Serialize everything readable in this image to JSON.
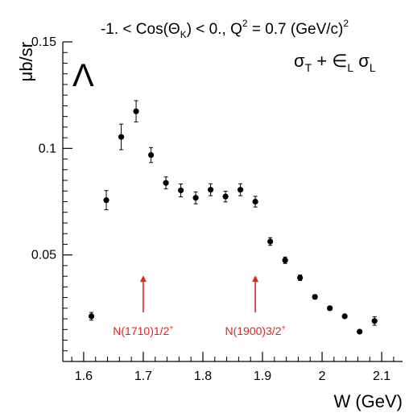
{
  "chart_data": {
    "type": "scatter",
    "title": "-1. < Cos(Θ_K) < 0.,  Q^2 = 0.7 (GeV/c)^2",
    "title_parts": {
      "cut": "-1. < Cos(Θ",
      "cut_sub": "K",
      "cut_tail": ") < 0.,  Q",
      "q_sup": "2",
      "q_mid": " = 0.7 (GeV/c)",
      "unit_sup": "2"
    },
    "xlabel": "W (GeV)",
    "ylabel": "μb/sr",
    "xlim": [
      1.565,
      2.135
    ],
    "ylim": [
      0.0,
      0.15
    ],
    "xticks": [
      {
        "v": 1.6,
        "label": "1.6"
      },
      {
        "v": 1.7,
        "label": "1.7"
      },
      {
        "v": 1.8,
        "label": "1.8"
      },
      {
        "v": 1.9,
        "label": "1.9"
      },
      {
        "v": 2.0,
        "label": "2"
      },
      {
        "v": 2.1,
        "label": "2.1"
      }
    ],
    "yticks": [
      {
        "v": 0.05,
        "label": "0.05"
      },
      {
        "v": 0.1,
        "label": "0.1"
      },
      {
        "v": 0.15,
        "label": "0.15"
      }
    ],
    "series": [
      {
        "points": [
          {
            "x": 1.613,
            "y": 0.0212,
            "err": 0.0018
          },
          {
            "x": 1.638,
            "y": 0.0757,
            "err": 0.0045
          },
          {
            "x": 1.663,
            "y": 0.1054,
            "err": 0.006
          },
          {
            "x": 1.688,
            "y": 0.1174,
            "err": 0.005
          },
          {
            "x": 1.713,
            "y": 0.0969,
            "err": 0.0035
          },
          {
            "x": 1.738,
            "y": 0.0838,
            "err": 0.0028
          },
          {
            "x": 1.763,
            "y": 0.0803,
            "err": 0.003
          },
          {
            "x": 1.788,
            "y": 0.0768,
            "err": 0.0028
          },
          {
            "x": 1.813,
            "y": 0.0806,
            "err": 0.0028
          },
          {
            "x": 1.838,
            "y": 0.0774,
            "err": 0.0025
          },
          {
            "x": 1.863,
            "y": 0.0806,
            "err": 0.0028
          },
          {
            "x": 1.888,
            "y": 0.075,
            "err": 0.0025
          },
          {
            "x": 1.913,
            "y": 0.0563,
            "err": 0.0018
          },
          {
            "x": 1.938,
            "y": 0.0475,
            "err": 0.0015
          },
          {
            "x": 1.963,
            "y": 0.0393,
            "err": 0.0013
          },
          {
            "x": 1.988,
            "y": 0.0303,
            "err": 0.001
          },
          {
            "x": 2.013,
            "y": 0.025,
            "err": 0.0009
          },
          {
            "x": 2.038,
            "y": 0.0212,
            "err": 0.0008
          },
          {
            "x": 2.063,
            "y": 0.014,
            "err": 0.0007
          },
          {
            "x": 2.088,
            "y": 0.019,
            "err": 0.002
          }
        ]
      }
    ],
    "annotations": [
      {
        "name": "n1710",
        "main": "N(1710)1/2",
        "sup": "+",
        "x": 1.7,
        "arrow_from": 0.023,
        "arrow_to": 0.04
      },
      {
        "name": "n1900",
        "main": "N(1900)3/2",
        "sup": "+",
        "x": 1.888,
        "arrow_from": 0.023,
        "arrow_to": 0.04
      }
    ],
    "particle_label": "Λ",
    "observable": {
      "sigma1": "σ",
      "sub1": "T",
      "plus": " + ",
      "eps": "∈",
      "sub2": "L",
      "sigma2": " σ",
      "sub3": "L"
    },
    "colors": {
      "markers": "#000000",
      "annotations": "#e8221b",
      "axes": "#000000"
    },
    "grid": false
  }
}
